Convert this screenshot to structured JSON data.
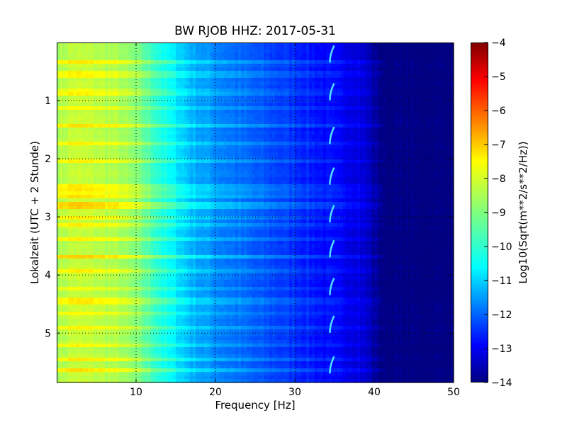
{
  "chart_data": {
    "type": "heatmap",
    "title": "BW RJOB HHZ: 2017-05-31",
    "xlabel": "Frequency [Hz]",
    "ylabel": "Lokalzeit (UTC + 2 Stunde)",
    "xlim": [
      0,
      50
    ],
    "ylim": [
      5.85,
      0
    ],
    "x_ticks": [
      10,
      20,
      30,
      40,
      50
    ],
    "x_tick_labels": [
      "10",
      "20",
      "30",
      "40",
      "50"
    ],
    "y_ticks": [
      1,
      2,
      3,
      4,
      5
    ],
    "y_tick_labels": [
      "1",
      "2",
      "3",
      "4",
      "5"
    ],
    "grid": true,
    "grid_style": "dotted",
    "colormap": "jet",
    "colorbar": {
      "label": "Log10(Sqrt(m**2/s**2/Hz))",
      "range": [
        -14,
        -4
      ],
      "ticks": [
        -4,
        -5,
        -6,
        -7,
        -8,
        -9,
        -10,
        -11,
        -12,
        -13,
        -14
      ],
      "tick_labels": [
        "−4",
        "−5",
        "−6",
        "−7",
        "−8",
        "−9",
        "−10",
        "−11",
        "−12",
        "−13",
        "−14"
      ]
    },
    "spectral_profile": {
      "frequency_hz": [
        0,
        2,
        5,
        8,
        10,
        12,
        14,
        16,
        17,
        20,
        25,
        30,
        35,
        38,
        40,
        41,
        50
      ],
      "log10_psd": [
        -8.6,
        -8.3,
        -8.4,
        -8.6,
        -9.0,
        -9.6,
        -10.2,
        -10.7,
        -11.0,
        -11.4,
        -11.9,
        -12.3,
        -12.8,
        -13.0,
        -13.6,
        -14.0,
        -14.0
      ]
    },
    "broadband_events_hours": [
      0.35,
      0.55,
      0.85,
      1.15,
      1.45,
      1.75,
      2.05,
      2.5,
      2.62,
      2.8,
      3.0,
      3.15,
      3.4,
      3.7,
      3.95,
      4.25,
      4.45,
      4.65,
      4.9,
      5.2,
      5.45,
      5.65
    ],
    "strong_event_hours": [
      2.8,
      3.68
    ],
    "tonal_line": {
      "frequency_hz": 34.5,
      "bursts_hours": [
        0.2,
        0.85,
        1.6,
        2.3,
        2.95,
        3.55,
        4.2,
        4.85,
        5.55
      ]
    }
  }
}
